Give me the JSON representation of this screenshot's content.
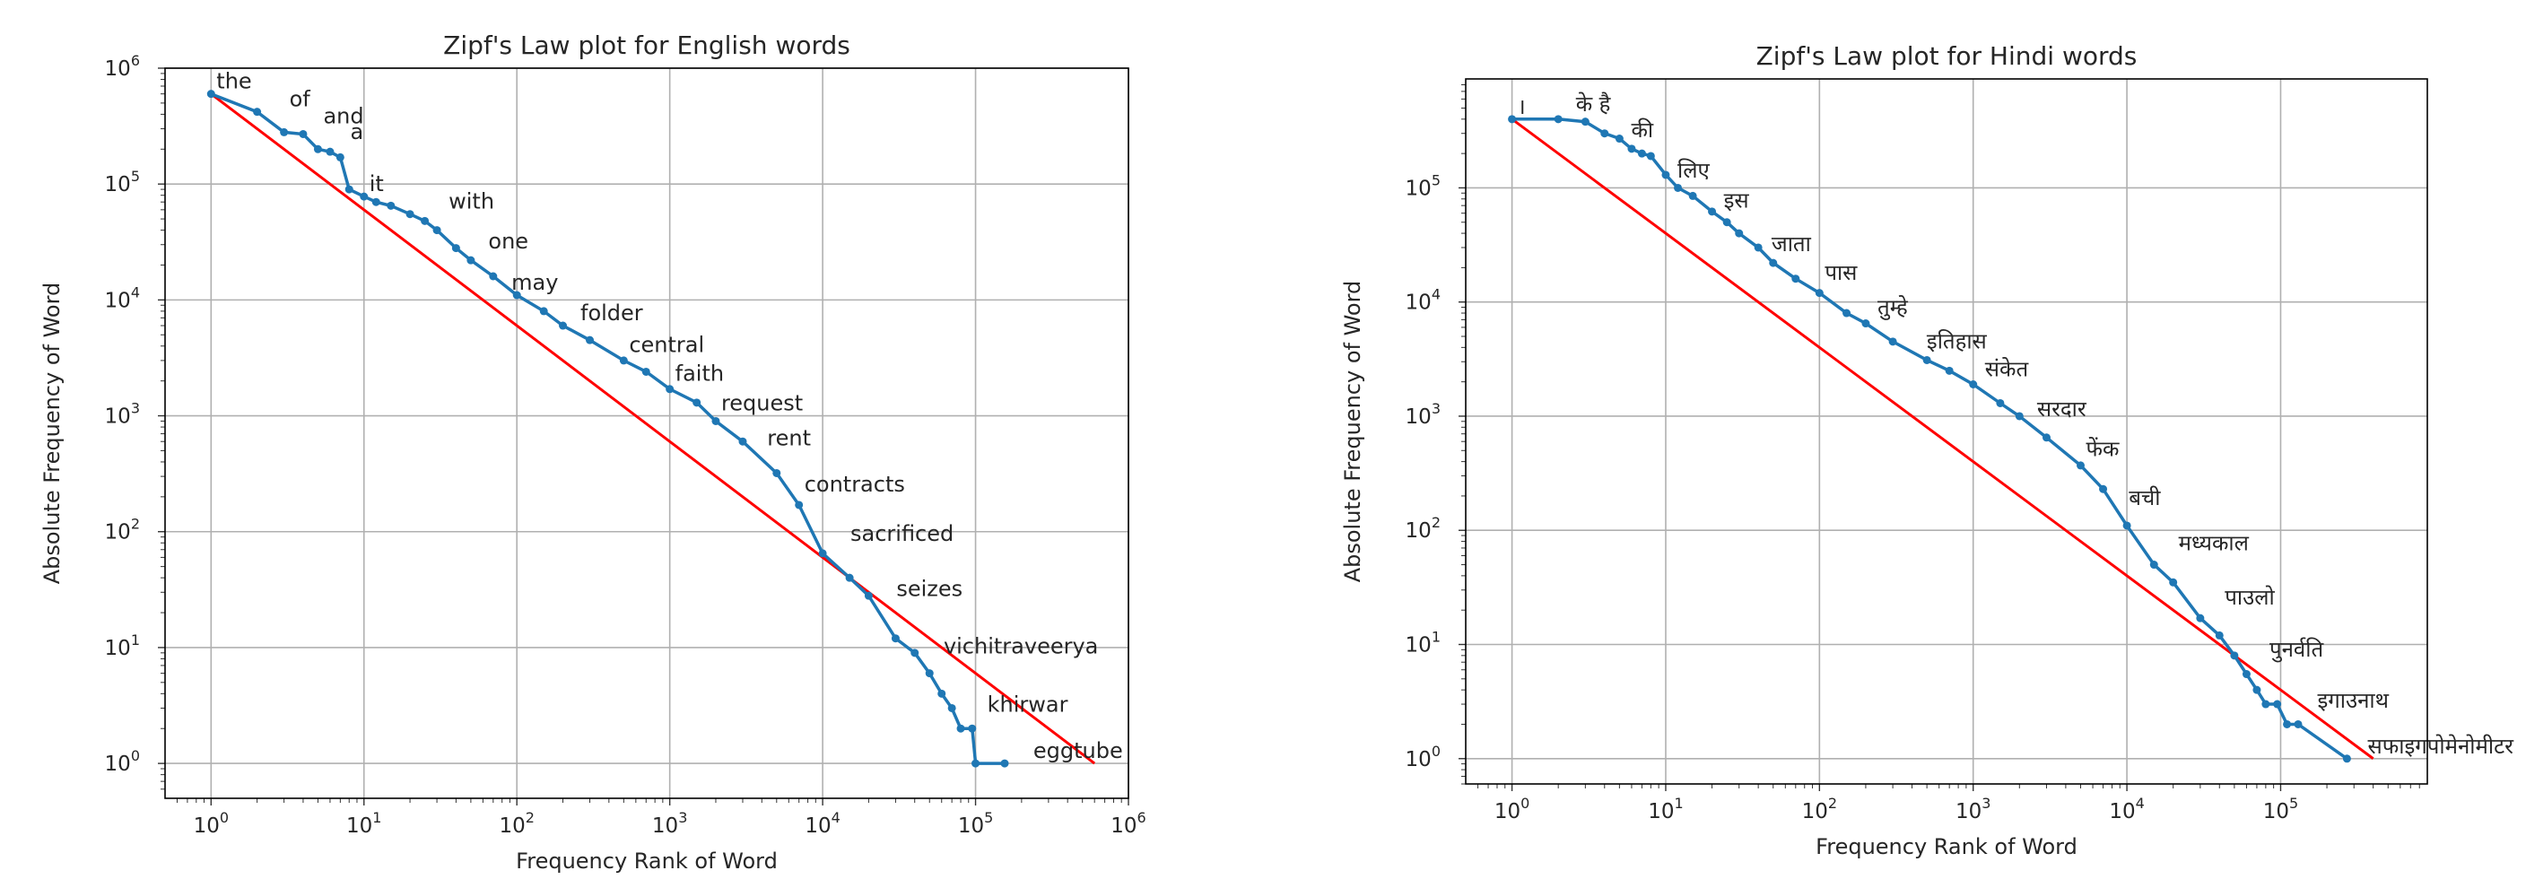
{
  "chart_data": [
    {
      "type": "line",
      "title": "Zipf's Law plot for English words",
      "xlabel": "Frequency Rank of Word",
      "ylabel": "Absolute Frequency of Word",
      "xscale": "log",
      "yscale": "log",
      "xlim": [
        0.5,
        1000000
      ],
      "ylim": [
        0.5,
        1000000
      ],
      "grid": true,
      "x_ticks": [
        {
          "value": 1,
          "base": "10",
          "exp": "0"
        },
        {
          "value": 10,
          "base": "10",
          "exp": "1"
        },
        {
          "value": 100,
          "base": "10",
          "exp": "2"
        },
        {
          "value": 1000,
          "base": "10",
          "exp": "3"
        },
        {
          "value": 10000,
          "base": "10",
          "exp": "4"
        },
        {
          "value": 100000,
          "base": "10",
          "exp": "5"
        },
        {
          "value": 1000000,
          "base": "10",
          "exp": "6"
        }
      ],
      "y_ticks": [
        {
          "value": 1,
          "base": "10",
          "exp": "0"
        },
        {
          "value": 10,
          "base": "10",
          "exp": "1"
        },
        {
          "value": 100,
          "base": "10",
          "exp": "2"
        },
        {
          "value": 1000,
          "base": "10",
          "exp": "3"
        },
        {
          "value": 10000,
          "base": "10",
          "exp": "4"
        },
        {
          "value": 100000,
          "base": "10",
          "exp": "5"
        },
        {
          "value": 1000000,
          "base": "10",
          "exp": "6"
        }
      ],
      "observed": {
        "color": "#1f77b4",
        "x": [
          1,
          2,
          3,
          4,
          5,
          6,
          7,
          8,
          10,
          12,
          15,
          20,
          25,
          30,
          40,
          50,
          70,
          100,
          150,
          200,
          300,
          500,
          700,
          1000,
          1500,
          2000,
          3000,
          5000,
          7000,
          10000,
          15000,
          20000,
          30000,
          40000,
          50000,
          60000,
          70000,
          80000,
          95000,
          100000,
          155000
        ],
        "y": [
          600000,
          420000,
          280000,
          270000,
          200000,
          190000,
          170000,
          90000,
          78000,
          70000,
          65000,
          55000,
          48000,
          40000,
          28000,
          22000,
          16000,
          11000,
          8000,
          6000,
          4500,
          3000,
          2400,
          1700,
          1300,
          900,
          600,
          320,
          170,
          65,
          40,
          28,
          12,
          9,
          6,
          4,
          3,
          2,
          2,
          1,
          1
        ]
      },
      "reference_line": {
        "color": "#ff0000",
        "x": [
          1,
          600000
        ],
        "y": [
          600000,
          1
        ]
      },
      "annotations": [
        {
          "text": "the",
          "x": 1,
          "y": 600000
        },
        {
          "text": "of",
          "x": 3,
          "y": 420000
        },
        {
          "text": "and",
          "x": 5,
          "y": 300000
        },
        {
          "text": "a",
          "x": 7.5,
          "y": 220000
        },
        {
          "text": "it",
          "x": 10,
          "y": 78000
        },
        {
          "text": "with",
          "x": 33,
          "y": 55000
        },
        {
          "text": "one",
          "x": 60,
          "y": 25000
        },
        {
          "text": "may",
          "x": 85,
          "y": 11000
        },
        {
          "text": "folder",
          "x": 240,
          "y": 6000
        },
        {
          "text": "central",
          "x": 500,
          "y": 3200
        },
        {
          "text": "faith",
          "x": 1000,
          "y": 1800
        },
        {
          "text": "request",
          "x": 2000,
          "y": 1000
        },
        {
          "text": "rent",
          "x": 4000,
          "y": 500
        },
        {
          "text": "contracts",
          "x": 7000,
          "y": 200
        },
        {
          "text": "sacrificed",
          "x": 14000,
          "y": 75
        },
        {
          "text": "seizes",
          "x": 28000,
          "y": 25
        },
        {
          "text": "vichitraveerya",
          "x": 57000,
          "y": 8
        },
        {
          "text": "khirwar",
          "x": 110000,
          "y": 2.5
        },
        {
          "text": "eggtube",
          "x": 220000,
          "y": 1
        }
      ]
    },
    {
      "type": "line",
      "title": "Zipf's Law plot for Hindi words",
      "xlabel": "Frequency Rank of Word",
      "ylabel": "Absolute Frequency of Word",
      "xscale": "log",
      "yscale": "log",
      "xlim": [
        0.5,
        900000
      ],
      "ylim": [
        0.6,
        900000
      ],
      "grid": true,
      "x_ticks": [
        {
          "value": 1,
          "base": "10",
          "exp": "0"
        },
        {
          "value": 10,
          "base": "10",
          "exp": "1"
        },
        {
          "value": 100,
          "base": "10",
          "exp": "2"
        },
        {
          "value": 1000,
          "base": "10",
          "exp": "3"
        },
        {
          "value": 10000,
          "base": "10",
          "exp": "4"
        },
        {
          "value": 100000,
          "base": "10",
          "exp": "5"
        }
      ],
      "y_ticks": [
        {
          "value": 1,
          "base": "10",
          "exp": "0"
        },
        {
          "value": 10,
          "base": "10",
          "exp": "1"
        },
        {
          "value": 100,
          "base": "10",
          "exp": "2"
        },
        {
          "value": 1000,
          "base": "10",
          "exp": "3"
        },
        {
          "value": 10000,
          "base": "10",
          "exp": "4"
        },
        {
          "value": 100000,
          "base": "10",
          "exp": "5"
        }
      ],
      "observed": {
        "color": "#1f77b4",
        "x": [
          1,
          2,
          3,
          4,
          5,
          6,
          7,
          8,
          10,
          12,
          15,
          20,
          25,
          30,
          40,
          50,
          70,
          100,
          150,
          200,
          300,
          500,
          700,
          1000,
          1500,
          2000,
          3000,
          5000,
          7000,
          10000,
          15000,
          20000,
          30000,
          40000,
          50000,
          60000,
          70000,
          80000,
          95000,
          110000,
          130000,
          270000
        ],
        "y": [
          400000,
          400000,
          380000,
          300000,
          270000,
          220000,
          200000,
          190000,
          130000,
          100000,
          85000,
          62000,
          50000,
          40000,
          30000,
          22000,
          16000,
          12000,
          8000,
          6500,
          4500,
          3100,
          2500,
          1900,
          1300,
          1000,
          650,
          370,
          230,
          110,
          50,
          35,
          17,
          12,
          8,
          5.5,
          4,
          3,
          3,
          2,
          2,
          1
        ]
      },
      "reference_line": {
        "color": "#ff0000",
        "x": [
          1,
          400000
        ],
        "y": [
          400000,
          1
        ]
      },
      "annotations": [
        {
          "text": "।",
          "x": 1,
          "y": 400000
        },
        {
          "text": "के",
          "x": 2.4,
          "y": 420000
        },
        {
          "text": "है",
          "x": 3.4,
          "y": 420000
        },
        {
          "text": "की",
          "x": 5.5,
          "y": 250000
        },
        {
          "text": "लिए",
          "x": 11,
          "y": 110000
        },
        {
          "text": "इस",
          "x": 22,
          "y": 60000
        },
        {
          "text": "जाता",
          "x": 45,
          "y": 25000
        },
        {
          "text": "पास",
          "x": 100,
          "y": 14000
        },
        {
          "text": "तुम्हे",
          "x": 220,
          "y": 7000
        },
        {
          "text": "इतिहास",
          "x": 460,
          "y": 3500
        },
        {
          "text": "संकेत",
          "x": 1100,
          "y": 2000
        },
        {
          "text": "सरदार",
          "x": 2400,
          "y": 900
        },
        {
          "text": "फेंक",
          "x": 5000,
          "y": 400
        },
        {
          "text": "बची",
          "x": 9500,
          "y": 150
        },
        {
          "text": "मध्यकाल",
          "x": 20000,
          "y": 60
        },
        {
          "text": "पाउलो",
          "x": 40000,
          "y": 20
        },
        {
          "text": "पुनर्वति",
          "x": 78000,
          "y": 7
        },
        {
          "text": "इगाउनाथ",
          "x": 160000,
          "y": 2.5
        },
        {
          "text": "सफाइगपोमेनोमीटर",
          "x": 340000,
          "y": 1
        }
      ]
    }
  ]
}
